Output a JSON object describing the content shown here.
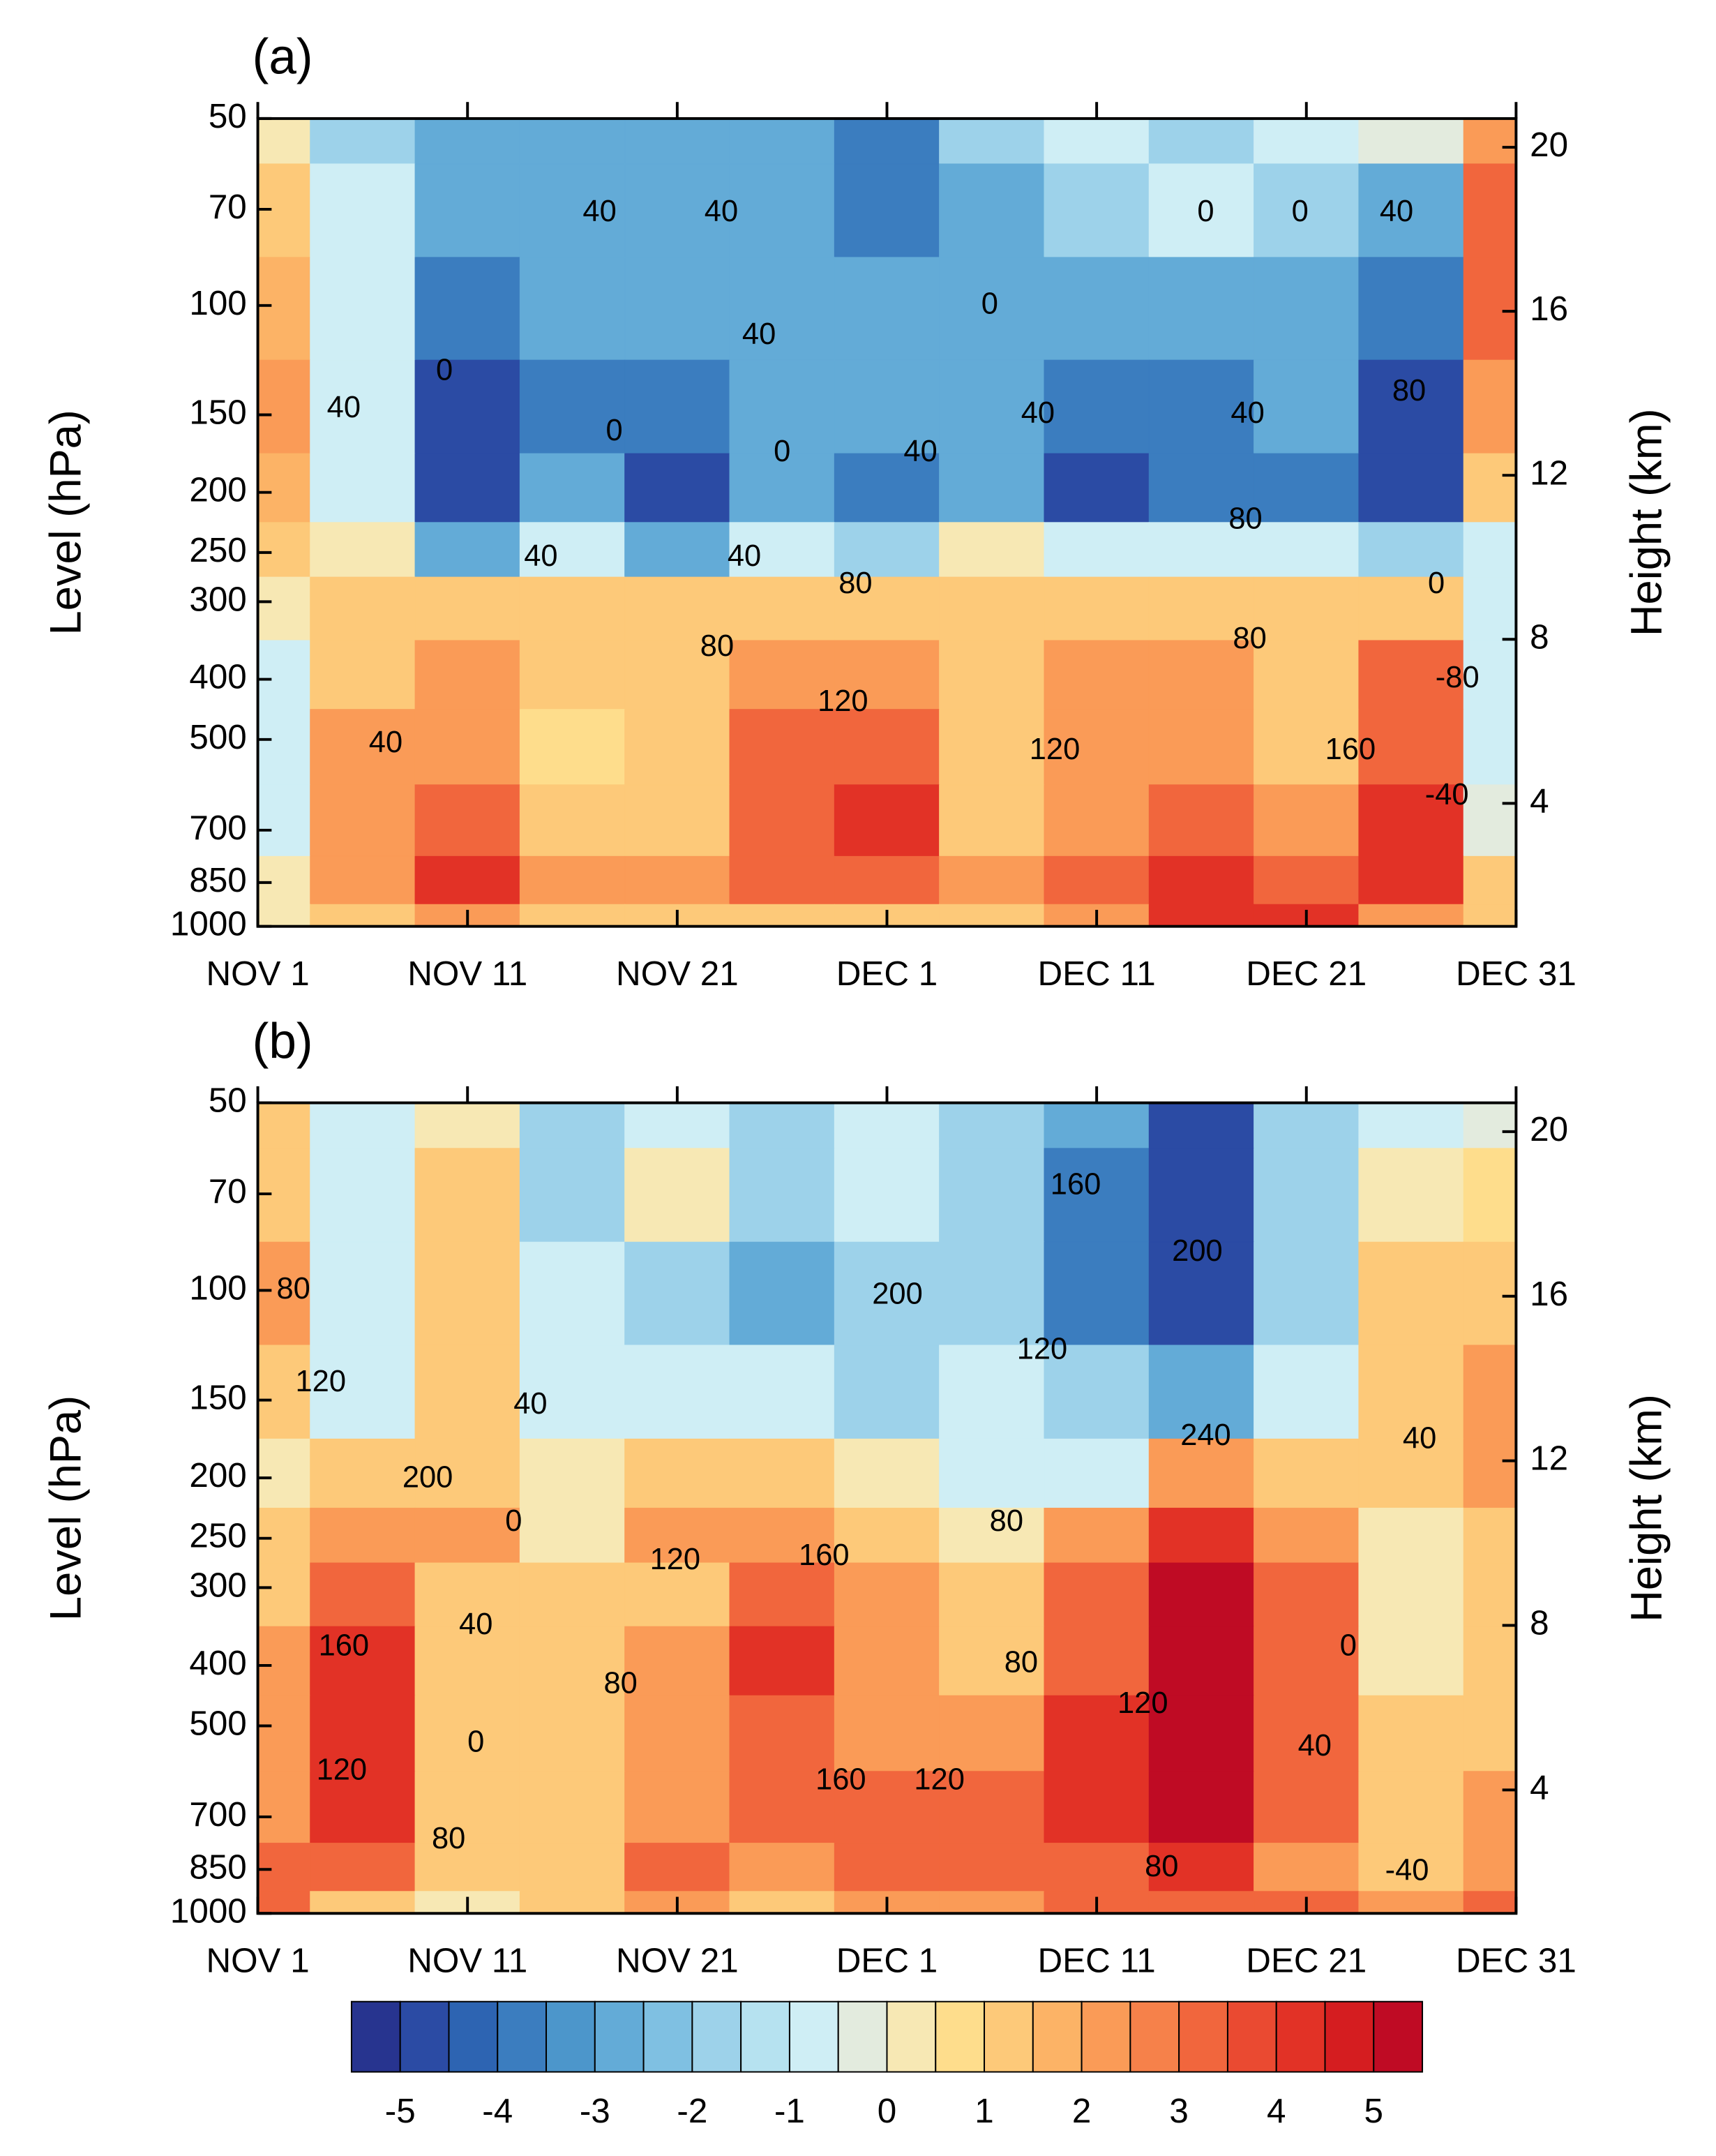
{
  "chart_data": [
    {
      "type": "contour",
      "panel_label": "(a)",
      "x": [
        0,
        5,
        10,
        15,
        20,
        25,
        30,
        35,
        40,
        45,
        50,
        55,
        60
      ],
      "y": [
        50,
        70,
        100,
        150,
        200,
        250,
        300,
        400,
        500,
        700,
        850,
        1000
      ],
      "z": [
        [
          0,
          -2,
          -3,
          -3,
          -3,
          -3,
          -4,
          -2,
          -1,
          -2,
          -1,
          -0.5,
          2
        ],
        [
          1,
          -1,
          -3,
          -3,
          -3,
          -3,
          -4,
          -3,
          -2,
          -1,
          -2,
          -3,
          3
        ],
        [
          1.5,
          -1,
          -4,
          -3,
          -3,
          -3,
          -3,
          -3,
          -3,
          -3,
          -3,
          -4,
          3
        ],
        [
          2,
          -1,
          -5,
          -4,
          -4,
          -3,
          -3,
          -3,
          -4,
          -4,
          -3,
          -5,
          2
        ],
        [
          1.5,
          -1,
          -5,
          -3,
          -5,
          -3,
          -4,
          -3,
          -5,
          -4,
          -4,
          -5,
          1
        ],
        [
          1,
          0,
          -3,
          -1,
          -3,
          -1,
          -2,
          0,
          -1,
          -1,
          -1,
          -2,
          -1
        ],
        [
          0,
          1,
          1,
          1,
          1,
          1,
          1,
          1,
          1,
          1,
          1,
          1,
          -1
        ],
        [
          -1,
          1,
          2,
          1,
          1,
          2,
          2,
          1,
          2,
          2,
          1,
          3,
          -1
        ],
        [
          -1,
          2,
          2,
          0.5,
          1,
          3,
          3,
          1,
          2,
          2,
          1,
          3,
          -1
        ],
        [
          -1,
          2,
          3,
          1,
          1,
          3,
          4,
          1,
          2,
          3,
          2,
          4,
          -0.5
        ],
        [
          0,
          2,
          4,
          2,
          2,
          3,
          3,
          2,
          3,
          4,
          3,
          4,
          1
        ],
        [
          0,
          1,
          2,
          1,
          1,
          1,
          1,
          1,
          2,
          4,
          4,
          2,
          1
        ]
      ],
      "xlim": [
        0,
        60
      ],
      "xticks": [
        {
          "value": 0,
          "label": "NOV 1"
        },
        {
          "value": 10,
          "label": "NOV 11"
        },
        {
          "value": 20,
          "label": "NOV 21"
        },
        {
          "value": 30,
          "label": "DEC 1"
        },
        {
          "value": 40,
          "label": "DEC 11"
        },
        {
          "value": 50,
          "label": "DEC 21"
        },
        {
          "value": 60,
          "label": "DEC 31"
        }
      ],
      "ylim": [
        1000,
        50
      ],
      "log_y": true,
      "yticks": [
        50,
        70,
        100,
        150,
        200,
        250,
        300,
        400,
        500,
        700,
        850,
        1000
      ],
      "ylabel": "Level (hPa)",
      "y2lim": [
        1.0,
        20.7
      ],
      "y2ticks": [
        4,
        8,
        12,
        16,
        20
      ],
      "y2label": "Height (km)",
      "contour_labels": [
        {
          "text": "40",
          "x": 16.3,
          "y": 71
        },
        {
          "text": "40",
          "x": 22.1,
          "y": 71
        },
        {
          "text": "0",
          "x": 45.2,
          "y": 71
        },
        {
          "text": "0",
          "x": 49.7,
          "y": 71
        },
        {
          "text": "40",
          "x": 54.3,
          "y": 71
        },
        {
          "text": "0",
          "x": 34.9,
          "y": 100
        },
        {
          "text": "40",
          "x": 23.9,
          "y": 112
        },
        {
          "text": "40",
          "x": 4.1,
          "y": 147
        },
        {
          "text": "0",
          "x": 8.9,
          "y": 128
        },
        {
          "text": "0",
          "x": 17,
          "y": 160
        },
        {
          "text": "0",
          "x": 25,
          "y": 173
        },
        {
          "text": "40",
          "x": 31.6,
          "y": 173
        },
        {
          "text": "40",
          "x": 37.2,
          "y": 150
        },
        {
          "text": "40",
          "x": 47.2,
          "y": 150
        },
        {
          "text": "80",
          "x": 54.9,
          "y": 138
        },
        {
          "text": "80",
          "x": 47.1,
          "y": 222
        },
        {
          "text": "40",
          "x": 13.5,
          "y": 255
        },
        {
          "text": "40",
          "x": 23.2,
          "y": 255
        },
        {
          "text": "80",
          "x": 28.5,
          "y": 282
        },
        {
          "text": "0",
          "x": 56.2,
          "y": 282
        },
        {
          "text": "80",
          "x": 47.3,
          "y": 346
        },
        {
          "text": "80",
          "x": 21.9,
          "y": 356
        },
        {
          "text": "120",
          "x": 27.9,
          "y": 437
        },
        {
          "text": "-80",
          "x": 57.2,
          "y": 400
        },
        {
          "text": "120",
          "x": 38,
          "y": 522
        },
        {
          "text": "160",
          "x": 52.1,
          "y": 522
        },
        {
          "text": "-40",
          "x": 56.7,
          "y": 618
        },
        {
          "text": "40",
          "x": 6.1,
          "y": 509
        }
      ]
    },
    {
      "type": "contour",
      "panel_label": "(b)",
      "x": [
        0,
        5,
        10,
        15,
        20,
        25,
        30,
        35,
        40,
        45,
        50,
        55,
        60
      ],
      "y": [
        50,
        70,
        100,
        150,
        200,
        250,
        300,
        400,
        500,
        700,
        850,
        1000
      ],
      "z": [
        [
          1,
          -1,
          0,
          -2,
          -1,
          -2,
          -1,
          -2,
          -3,
          -5,
          -2,
          -1,
          -0.5
        ],
        [
          1,
          -1,
          1,
          -2,
          0,
          -2,
          -1,
          -2,
          -4,
          -5,
          -2,
          0,
          0.5
        ],
        [
          2,
          -1,
          1,
          -1,
          -2,
          -3,
          -2,
          -2,
          -4,
          -5,
          -2,
          1,
          1
        ],
        [
          1,
          -1,
          1,
          -1,
          -1,
          -1,
          -2,
          -1,
          -2,
          -3,
          -1,
          1,
          2
        ],
        [
          0,
          1,
          1,
          0,
          1,
          1,
          0,
          -1,
          -1,
          2,
          1,
          1,
          2
        ],
        [
          1,
          2,
          2,
          0,
          2,
          2,
          1,
          0,
          2,
          4,
          2,
          0,
          1
        ],
        [
          1,
          3,
          1,
          1,
          1,
          3,
          2,
          1,
          3,
          5,
          3,
          0,
          1
        ],
        [
          2,
          4,
          1,
          1,
          2,
          4,
          2,
          1,
          3,
          5,
          3,
          0,
          1
        ],
        [
          2,
          4,
          1,
          1,
          2,
          3,
          2,
          2,
          4,
          5,
          3,
          1,
          1
        ],
        [
          2,
          4,
          1,
          1,
          2,
          3,
          3,
          3,
          4,
          5,
          3,
          1,
          2
        ],
        [
          3,
          3,
          1,
          1,
          3,
          2,
          3,
          3,
          3,
          4,
          2,
          1,
          2
        ],
        [
          3,
          1,
          0,
          1,
          2,
          1,
          2,
          2,
          3,
          3,
          3,
          2,
          3
        ]
      ],
      "xlim": [
        0,
        60
      ],
      "xticks": [
        {
          "value": 0,
          "label": "NOV 1"
        },
        {
          "value": 10,
          "label": "NOV 11"
        },
        {
          "value": 20,
          "label": "NOV 21"
        },
        {
          "value": 30,
          "label": "DEC 1"
        },
        {
          "value": 40,
          "label": "DEC 11"
        },
        {
          "value": 50,
          "label": "DEC 21"
        },
        {
          "value": 60,
          "label": "DEC 31"
        }
      ],
      "ylim": [
        1000,
        50
      ],
      "log_y": true,
      "yticks": [
        50,
        70,
        100,
        150,
        200,
        250,
        300,
        400,
        500,
        700,
        850,
        1000
      ],
      "ylabel": "Level (hPa)",
      "y2lim": [
        1.0,
        20.7
      ],
      "y2ticks": [
        4,
        8,
        12,
        16,
        20
      ],
      "y2label": "Height (km)",
      "contour_labels": [
        {
          "text": "80",
          "x": 1.7,
          "y": 100
        },
        {
          "text": "120",
          "x": 3,
          "y": 141
        },
        {
          "text": "200",
          "x": 8.1,
          "y": 201
        },
        {
          "text": "40",
          "x": 13,
          "y": 153
        },
        {
          "text": "0",
          "x": 12.2,
          "y": 236
        },
        {
          "text": "40",
          "x": 10.4,
          "y": 346
        },
        {
          "text": "0",
          "x": 10.4,
          "y": 534
        },
        {
          "text": "80",
          "x": 9.1,
          "y": 763
        },
        {
          "text": "160",
          "x": 4.1,
          "y": 374
        },
        {
          "text": "120",
          "x": 4,
          "y": 592
        },
        {
          "text": "120",
          "x": 19.9,
          "y": 272
        },
        {
          "text": "80",
          "x": 17.3,
          "y": 430
        },
        {
          "text": "200",
          "x": 30.5,
          "y": 102
        },
        {
          "text": "160",
          "x": 27,
          "y": 268
        },
        {
          "text": "160",
          "x": 27.8,
          "y": 614
        },
        {
          "text": "120",
          "x": 32.5,
          "y": 614
        },
        {
          "text": "120",
          "x": 37.4,
          "y": 125
        },
        {
          "text": "160",
          "x": 39,
          "y": 68
        },
        {
          "text": "200",
          "x": 44.8,
          "y": 87
        },
        {
          "text": "240",
          "x": 45.2,
          "y": 172
        },
        {
          "text": "80",
          "x": 35.7,
          "y": 236
        },
        {
          "text": "80",
          "x": 36.4,
          "y": 398
        },
        {
          "text": "120",
          "x": 42.2,
          "y": 463
        },
        {
          "text": "80",
          "x": 43.1,
          "y": 846
        },
        {
          "text": "0",
          "x": 52,
          "y": 374
        },
        {
          "text": "40",
          "x": 50.4,
          "y": 542
        },
        {
          "text": "40",
          "x": 55.4,
          "y": 174
        },
        {
          "text": "-40",
          "x": 54.8,
          "y": 858
        }
      ]
    }
  ],
  "colorbar": {
    "levels": [
      -5,
      -4.5,
      -4,
      -3.5,
      -3,
      -2.5,
      -2,
      -1.5,
      -1,
      -0.5,
      0,
      0.5,
      1,
      1.5,
      2,
      2.5,
      3,
      3.5,
      4,
      4.5,
      5
    ],
    "colors": [
      "#27348f",
      "#2b4ba4",
      "#2d64b2",
      "#3b7dbf",
      "#4c96cb",
      "#63abd7",
      "#7fc0e2",
      "#9dd2ea",
      "#b6e2f0",
      "#cfeef5",
      "#e3ebde",
      "#f7e8b4",
      "#fedd8c",
      "#fdc979",
      "#fcb366",
      "#fa9b57",
      "#f6814a",
      "#f1663d",
      "#ea4a31",
      "#e23226",
      "#d51d20",
      "#bf0b24"
    ],
    "ticks": [
      -5,
      -4,
      -3,
      -2,
      -1,
      0,
      1,
      2,
      3,
      4,
      5
    ]
  }
}
